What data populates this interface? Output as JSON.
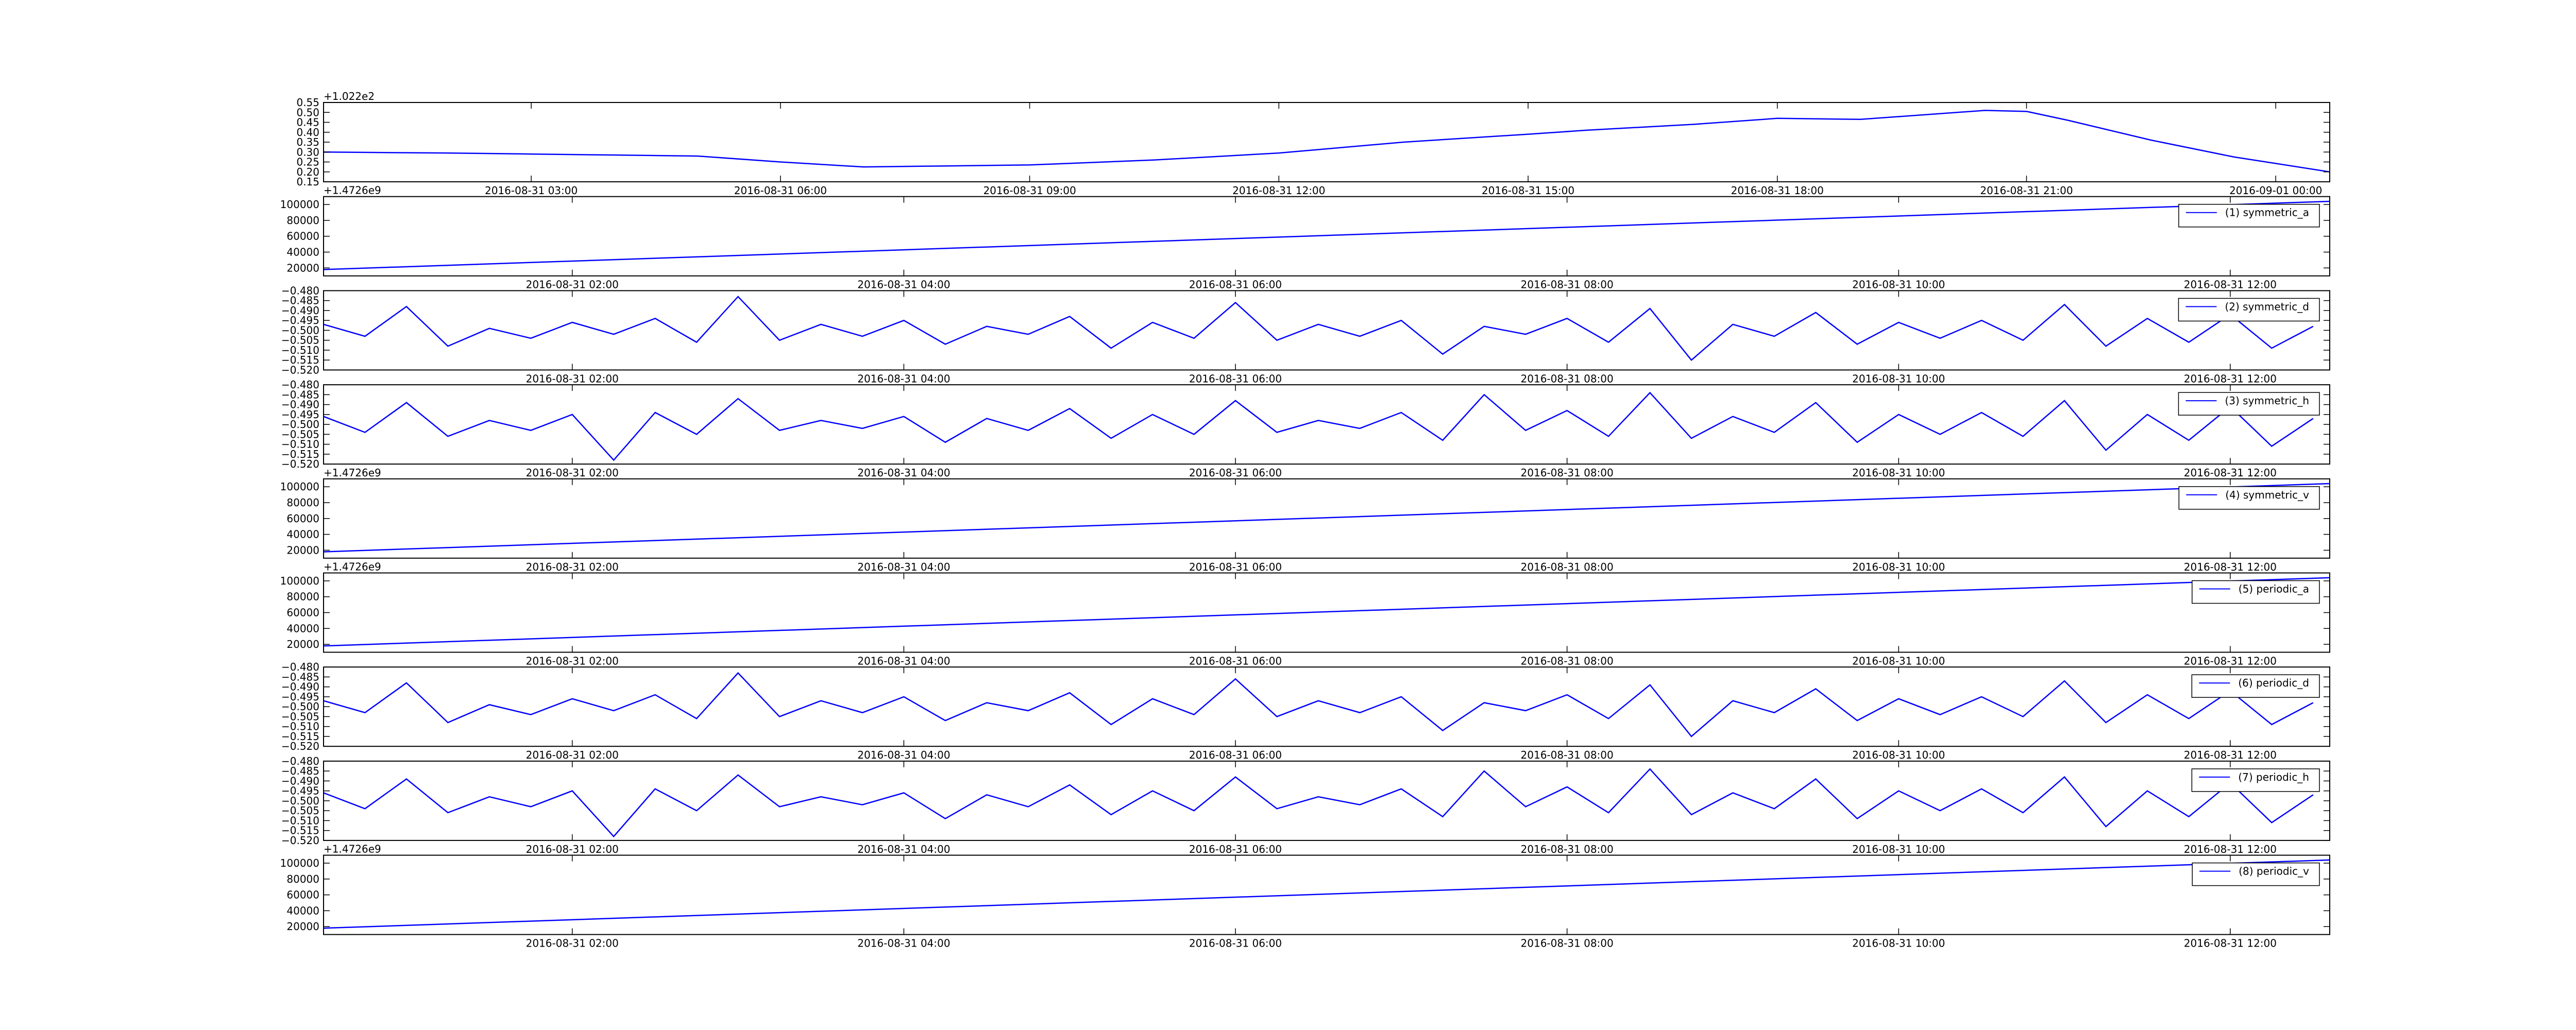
{
  "chart_data": [
    {
      "type": "line",
      "offset_label": "+1.022e2",
      "x": [
        0.5,
        2,
        3,
        4,
        5,
        6,
        7,
        8,
        9,
        10.5,
        12,
        13.5,
        15,
        15.7,
        17,
        18,
        19,
        19.5,
        20.5,
        21,
        21.5,
        22.5,
        23.5,
        24.65
      ],
      "series": [
        {
          "color": "#0000ff",
          "values": [
            0.3,
            0.295,
            0.29,
            0.285,
            0.28,
            0.25,
            0.225,
            0.23,
            0.235,
            0.26,
            0.295,
            0.35,
            0.39,
            0.41,
            0.44,
            0.47,
            0.465,
            0.48,
            0.51,
            0.505,
            0.46,
            0.36,
            0.275,
            0.2
          ]
        }
      ],
      "xlim": [
        0.5,
        24.65
      ],
      "xticks": [
        {
          "value": 3,
          "label": "2016-08-31 03:00"
        },
        {
          "value": 6,
          "label": "2016-08-31 06:00"
        },
        {
          "value": 9,
          "label": "2016-08-31 09:00"
        },
        {
          "value": 12,
          "label": "2016-08-31 12:00"
        },
        {
          "value": 15,
          "label": "2016-08-31 15:00"
        },
        {
          "value": 18,
          "label": "2016-08-31 18:00"
        },
        {
          "value": 21,
          "label": "2016-08-31 21:00"
        },
        {
          "value": 24,
          "label": "2016-09-01 00:00"
        }
      ],
      "ylim": [
        0.15,
        0.55
      ],
      "yticks": [
        0.15,
        {
          "value": 0.2,
          "label": "0.20"
        },
        0.25,
        {
          "value": 0.3,
          "label": "0.30"
        },
        0.35,
        {
          "value": 0.4,
          "label": "0.40"
        },
        0.45,
        {
          "value": 0.5,
          "label": "0.50"
        },
        0.55
      ]
    },
    {
      "type": "line",
      "offset_label": "+1.4726e9",
      "legend": "upper right",
      "x": [
        0.5,
        12.6
      ],
      "series": [
        {
          "name": "(1) symmetric_a",
          "color": "#0000ff",
          "values": [
            18000,
            104000
          ]
        }
      ],
      "xlim": [
        0.5,
        12.6
      ],
      "xticks": [
        {
          "value": 2,
          "label": "2016-08-31 02:00"
        },
        {
          "value": 4,
          "label": "2016-08-31 04:00"
        },
        {
          "value": 6,
          "label": "2016-08-31 06:00"
        },
        {
          "value": 8,
          "label": "2016-08-31 08:00"
        },
        {
          "value": 10,
          "label": "2016-08-31 10:00"
        },
        {
          "value": 12,
          "label": "2016-08-31 12:00"
        }
      ],
      "ylim": [
        10000,
        110000
      ],
      "yticks": [
        20000,
        40000,
        60000,
        80000,
        100000
      ]
    },
    {
      "type": "line",
      "legend": "upper right",
      "x": [
        0.5,
        0.75,
        1,
        1.25,
        1.5,
        1.75,
        2,
        2.25,
        2.5,
        2.75,
        3,
        3.25,
        3.5,
        3.75,
        4,
        4.25,
        4.5,
        4.75,
        5,
        5.25,
        5.5,
        5.75,
        6,
        6.25,
        6.5,
        6.75,
        7,
        7.25,
        7.5,
        7.75,
        8,
        8.25,
        8.5,
        8.75,
        9,
        9.25,
        9.5,
        9.75,
        10,
        10.25,
        10.5,
        10.75,
        11,
        11.25,
        11.5,
        11.75,
        12,
        12.25,
        12.5
      ],
      "series": [
        {
          "name": "(2) symmetric_d",
          "color": "#0000ff",
          "values": [
            -0.497,
            -0.503,
            -0.488,
            -0.508,
            -0.499,
            -0.504,
            -0.496,
            -0.502,
            -0.494,
            -0.506,
            -0.483,
            -0.505,
            -0.497,
            -0.503,
            -0.495,
            -0.507,
            -0.498,
            -0.502,
            -0.493,
            -0.509,
            -0.496,
            -0.504,
            -0.486,
            -0.505,
            -0.497,
            -0.503,
            -0.495,
            -0.512,
            -0.498,
            -0.502,
            -0.494,
            -0.506,
            -0.489,
            -0.515,
            -0.497,
            -0.503,
            -0.491,
            -0.507,
            -0.496,
            -0.504,
            -0.495,
            -0.505,
            -0.487,
            -0.508,
            -0.494,
            -0.506,
            -0.492,
            -0.509,
            -0.498
          ]
        }
      ],
      "xlim": [
        0.5,
        12.6
      ],
      "xticks": [
        {
          "value": 2,
          "label": "2016-08-31 02:00"
        },
        {
          "value": 4,
          "label": "2016-08-31 04:00"
        },
        {
          "value": 6,
          "label": "2016-08-31 06:00"
        },
        {
          "value": 8,
          "label": "2016-08-31 08:00"
        },
        {
          "value": 10,
          "label": "2016-08-31 10:00"
        },
        {
          "value": 12,
          "label": "2016-08-31 12:00"
        }
      ],
      "ylim": [
        -0.52,
        -0.48
      ],
      "yticks": [
        {
          "value": -0.52,
          "label": "−0.520"
        },
        {
          "value": -0.515,
          "label": "−0.515"
        },
        {
          "value": -0.51,
          "label": "−0.510"
        },
        {
          "value": -0.505,
          "label": "−0.505"
        },
        {
          "value": -0.5,
          "label": "−0.500"
        },
        {
          "value": -0.495,
          "label": "−0.495"
        },
        {
          "value": -0.49,
          "label": "−0.490"
        },
        {
          "value": -0.485,
          "label": "−0.485"
        },
        {
          "value": -0.48,
          "label": "−0.480"
        }
      ]
    },
    {
      "type": "line",
      "legend": "upper right",
      "x": [
        0.5,
        0.75,
        1,
        1.25,
        1.5,
        1.75,
        2,
        2.25,
        2.5,
        2.75,
        3,
        3.25,
        3.5,
        3.75,
        4,
        4.25,
        4.5,
        4.75,
        5,
        5.25,
        5.5,
        5.75,
        6,
        6.25,
        6.5,
        6.75,
        7,
        7.25,
        7.5,
        7.75,
        8,
        8.25,
        8.5,
        8.75,
        9,
        9.25,
        9.5,
        9.75,
        10,
        10.25,
        10.5,
        10.75,
        11,
        11.25,
        11.5,
        11.75,
        12,
        12.25,
        12.5
      ],
      "series": [
        {
          "name": "(3) symmetric_h",
          "color": "#0000ff",
          "values": [
            -0.496,
            -0.504,
            -0.489,
            -0.506,
            -0.498,
            -0.503,
            -0.495,
            -0.518,
            -0.494,
            -0.505,
            -0.487,
            -0.503,
            -0.498,
            -0.502,
            -0.496,
            -0.509,
            -0.497,
            -0.503,
            -0.492,
            -0.507,
            -0.495,
            -0.505,
            -0.488,
            -0.504,
            -0.498,
            -0.502,
            -0.494,
            -0.508,
            -0.485,
            -0.503,
            -0.493,
            -0.506,
            -0.484,
            -0.507,
            -0.496,
            -0.504,
            -0.489,
            -0.509,
            -0.495,
            -0.505,
            -0.494,
            -0.506,
            -0.488,
            -0.513,
            -0.495,
            -0.508,
            -0.491,
            -0.511,
            -0.497
          ]
        }
      ],
      "xlim": [
        0.5,
        12.6
      ],
      "xticks": [
        {
          "value": 2,
          "label": "2016-08-31 02:00"
        },
        {
          "value": 4,
          "label": "2016-08-31 04:00"
        },
        {
          "value": 6,
          "label": "2016-08-31 06:00"
        },
        {
          "value": 8,
          "label": "2016-08-31 08:00"
        },
        {
          "value": 10,
          "label": "2016-08-31 10:00"
        },
        {
          "value": 12,
          "label": "2016-08-31 12:00"
        }
      ],
      "ylim": [
        -0.52,
        -0.48
      ],
      "yticks": [
        {
          "value": -0.52,
          "label": "−0.520"
        },
        {
          "value": -0.515,
          "label": "−0.515"
        },
        {
          "value": -0.51,
          "label": "−0.510"
        },
        {
          "value": -0.505,
          "label": "−0.505"
        },
        {
          "value": -0.5,
          "label": "−0.500"
        },
        {
          "value": -0.495,
          "label": "−0.495"
        },
        {
          "value": -0.49,
          "label": "−0.490"
        },
        {
          "value": -0.485,
          "label": "−0.485"
        },
        {
          "value": -0.48,
          "label": "−0.480"
        }
      ]
    },
    {
      "type": "line",
      "offset_label": "+1.4726e9",
      "legend": "upper right",
      "x": [
        0.5,
        12.6
      ],
      "series": [
        {
          "name": "(4) symmetric_v",
          "color": "#0000ff",
          "values": [
            18000,
            104000
          ]
        }
      ],
      "xlim": [
        0.5,
        12.6
      ],
      "xticks": [
        {
          "value": 2,
          "label": "2016-08-31 02:00"
        },
        {
          "value": 4,
          "label": "2016-08-31 04:00"
        },
        {
          "value": 6,
          "label": "2016-08-31 06:00"
        },
        {
          "value": 8,
          "label": "2016-08-31 08:00"
        },
        {
          "value": 10,
          "label": "2016-08-31 10:00"
        },
        {
          "value": 12,
          "label": "2016-08-31 12:00"
        }
      ],
      "ylim": [
        10000,
        110000
      ],
      "yticks": [
        20000,
        40000,
        60000,
        80000,
        100000
      ]
    },
    {
      "type": "line",
      "offset_label": "+1.4726e9",
      "legend": "upper right",
      "x": [
        0.5,
        12.6
      ],
      "series": [
        {
          "name": "(5) periodic_a",
          "color": "#0000ff",
          "values": [
            18000,
            104000
          ]
        }
      ],
      "xlim": [
        0.5,
        12.6
      ],
      "xticks": [
        {
          "value": 2,
          "label": "2016-08-31 02:00"
        },
        {
          "value": 4,
          "label": "2016-08-31 04:00"
        },
        {
          "value": 6,
          "label": "2016-08-31 06:00"
        },
        {
          "value": 8,
          "label": "2016-08-31 08:00"
        },
        {
          "value": 10,
          "label": "2016-08-31 10:00"
        },
        {
          "value": 12,
          "label": "2016-08-31 12:00"
        }
      ],
      "ylim": [
        10000,
        110000
      ],
      "yticks": [
        20000,
        40000,
        60000,
        80000,
        100000
      ]
    },
    {
      "type": "line",
      "legend": "upper right",
      "x": [
        0.5,
        0.75,
        1,
        1.25,
        1.5,
        1.75,
        2,
        2.25,
        2.5,
        2.75,
        3,
        3.25,
        3.5,
        3.75,
        4,
        4.25,
        4.5,
        4.75,
        5,
        5.25,
        5.5,
        5.75,
        6,
        6.25,
        6.5,
        6.75,
        7,
        7.25,
        7.5,
        7.75,
        8,
        8.25,
        8.5,
        8.75,
        9,
        9.25,
        9.5,
        9.75,
        10,
        10.25,
        10.5,
        10.75,
        11,
        11.25,
        11.5,
        11.75,
        12,
        12.25,
        12.5
      ],
      "series": [
        {
          "name": "(6) periodic_d",
          "color": "#0000ff",
          "values": [
            -0.497,
            -0.503,
            -0.488,
            -0.508,
            -0.499,
            -0.504,
            -0.496,
            -0.502,
            -0.494,
            -0.506,
            -0.483,
            -0.505,
            -0.497,
            -0.503,
            -0.495,
            -0.507,
            -0.498,
            -0.502,
            -0.493,
            -0.509,
            -0.496,
            -0.504,
            -0.486,
            -0.505,
            -0.497,
            -0.503,
            -0.495,
            -0.512,
            -0.498,
            -0.502,
            -0.494,
            -0.506,
            -0.489,
            -0.515,
            -0.497,
            -0.503,
            -0.491,
            -0.507,
            -0.496,
            -0.504,
            -0.495,
            -0.505,
            -0.487,
            -0.508,
            -0.494,
            -0.506,
            -0.492,
            -0.509,
            -0.498
          ]
        }
      ],
      "xlim": [
        0.5,
        12.6
      ],
      "xticks": [
        {
          "value": 2,
          "label": "2016-08-31 02:00"
        },
        {
          "value": 4,
          "label": "2016-08-31 04:00"
        },
        {
          "value": 6,
          "label": "2016-08-31 06:00"
        },
        {
          "value": 8,
          "label": "2016-08-31 08:00"
        },
        {
          "value": 10,
          "label": "2016-08-31 10:00"
        },
        {
          "value": 12,
          "label": "2016-08-31 12:00"
        }
      ],
      "ylim": [
        -0.52,
        -0.48
      ],
      "yticks": [
        {
          "value": -0.52,
          "label": "−0.520"
        },
        {
          "value": -0.515,
          "label": "−0.515"
        },
        {
          "value": -0.51,
          "label": "−0.510"
        },
        {
          "value": -0.505,
          "label": "−0.505"
        },
        {
          "value": -0.5,
          "label": "−0.500"
        },
        {
          "value": -0.495,
          "label": "−0.495"
        },
        {
          "value": -0.49,
          "label": "−0.490"
        },
        {
          "value": -0.485,
          "label": "−0.485"
        },
        {
          "value": -0.48,
          "label": "−0.480"
        }
      ]
    },
    {
      "type": "line",
      "legend": "upper right",
      "x": [
        0.5,
        0.75,
        1,
        1.25,
        1.5,
        1.75,
        2,
        2.25,
        2.5,
        2.75,
        3,
        3.25,
        3.5,
        3.75,
        4,
        4.25,
        4.5,
        4.75,
        5,
        5.25,
        5.5,
        5.75,
        6,
        6.25,
        6.5,
        6.75,
        7,
        7.25,
        7.5,
        7.75,
        8,
        8.25,
        8.5,
        8.75,
        9,
        9.25,
        9.5,
        9.75,
        10,
        10.25,
        10.5,
        10.75,
        11,
        11.25,
        11.5,
        11.75,
        12,
        12.25,
        12.5
      ],
      "series": [
        {
          "name": "(7) periodic_h",
          "color": "#0000ff",
          "values": [
            -0.496,
            -0.504,
            -0.489,
            -0.506,
            -0.498,
            -0.503,
            -0.495,
            -0.518,
            -0.494,
            -0.505,
            -0.487,
            -0.503,
            -0.498,
            -0.502,
            -0.496,
            -0.509,
            -0.497,
            -0.503,
            -0.492,
            -0.507,
            -0.495,
            -0.505,
            -0.488,
            -0.504,
            -0.498,
            -0.502,
            -0.494,
            -0.508,
            -0.485,
            -0.503,
            -0.493,
            -0.506,
            -0.484,
            -0.507,
            -0.496,
            -0.504,
            -0.489,
            -0.509,
            -0.495,
            -0.505,
            -0.494,
            -0.506,
            -0.488,
            -0.513,
            -0.495,
            -0.508,
            -0.491,
            -0.511,
            -0.497
          ]
        }
      ],
      "xlim": [
        0.5,
        12.6
      ],
      "xticks": [
        {
          "value": 2,
          "label": "2016-08-31 02:00"
        },
        {
          "value": 4,
          "label": "2016-08-31 04:00"
        },
        {
          "value": 6,
          "label": "2016-08-31 06:00"
        },
        {
          "value": 8,
          "label": "2016-08-31 08:00"
        },
        {
          "value": 10,
          "label": "2016-08-31 10:00"
        },
        {
          "value": 12,
          "label": "2016-08-31 12:00"
        }
      ],
      "ylim": [
        -0.52,
        -0.48
      ],
      "yticks": [
        {
          "value": -0.52,
          "label": "−0.520"
        },
        {
          "value": -0.515,
          "label": "−0.515"
        },
        {
          "value": -0.51,
          "label": "−0.510"
        },
        {
          "value": -0.505,
          "label": "−0.505"
        },
        {
          "value": -0.5,
          "label": "−0.500"
        },
        {
          "value": -0.495,
          "label": "−0.495"
        },
        {
          "value": -0.49,
          "label": "−0.490"
        },
        {
          "value": -0.485,
          "label": "−0.485"
        },
        {
          "value": -0.48,
          "label": "−0.480"
        }
      ]
    },
    {
      "type": "line",
      "offset_label": "+1.4726e9",
      "legend": "upper right",
      "x": [
        0.5,
        12.6
      ],
      "series": [
        {
          "name": "(8) periodic_v",
          "color": "#0000ff",
          "values": [
            18000,
            104000
          ]
        }
      ],
      "xlim": [
        0.5,
        12.6
      ],
      "xticks": [
        {
          "value": 2,
          "label": "2016-08-31 02:00"
        },
        {
          "value": 4,
          "label": "2016-08-31 04:00"
        },
        {
          "value": 6,
          "label": "2016-08-31 06:00"
        },
        {
          "value": 8,
          "label": "2016-08-31 08:00"
        },
        {
          "value": 10,
          "label": "2016-08-31 10:00"
        },
        {
          "value": 12,
          "label": "2016-08-31 12:00"
        }
      ],
      "ylim": [
        10000,
        110000
      ],
      "yticks": [
        20000,
        40000,
        60000,
        80000,
        100000
      ]
    }
  ]
}
